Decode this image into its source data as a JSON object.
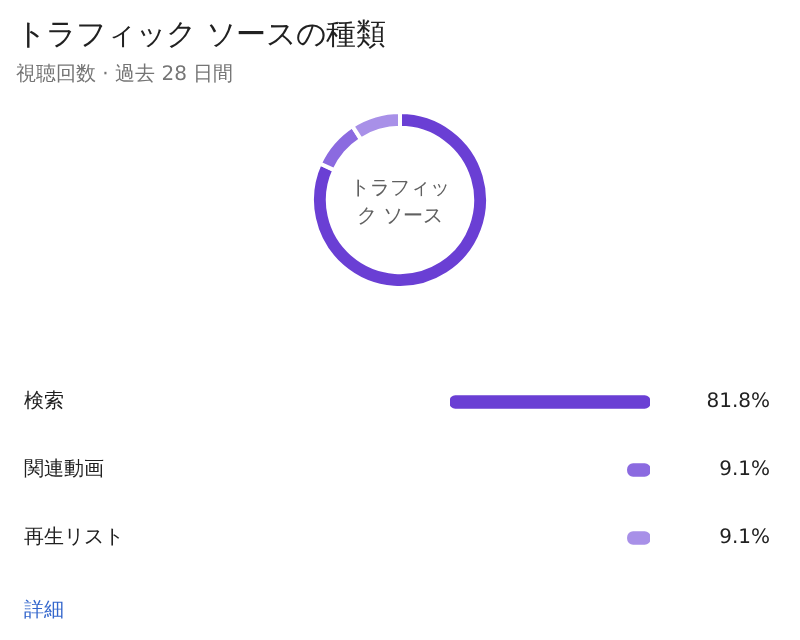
{
  "chart_data": [
    {
      "type": "donut",
      "title": "トラフィック ソースの種類",
      "subtitle": "視聴回数 · 過去 28 日間",
      "categories": [
        null,
        null,
        null
      ],
      "values": [
        81.8,
        9.1,
        9.1
      ],
      "colors": [
        "#6a3fd4",
        "#8b6ae0",
        "#a890e8"
      ],
      "annotations": [
        "トラフィック ソース"
      ]
    },
    {
      "type": "bar",
      "orientation": "horizontal",
      "categories": [
        "検索",
        "関連動画",
        "再生リスト"
      ],
      "values": [
        81.8,
        9.1,
        9.1
      ],
      "colors": [
        "#6a3fd4",
        "#8b6ae0",
        "#a890e8"
      ],
      "value_labels": [
        "81.8%",
        "9.1%",
        "9.1%"
      ],
      "xlim": [
        81.8,
        0
      ],
      "tick_labels": false,
      "annotations": [
        "詳細"
      ]
    }
  ]
}
